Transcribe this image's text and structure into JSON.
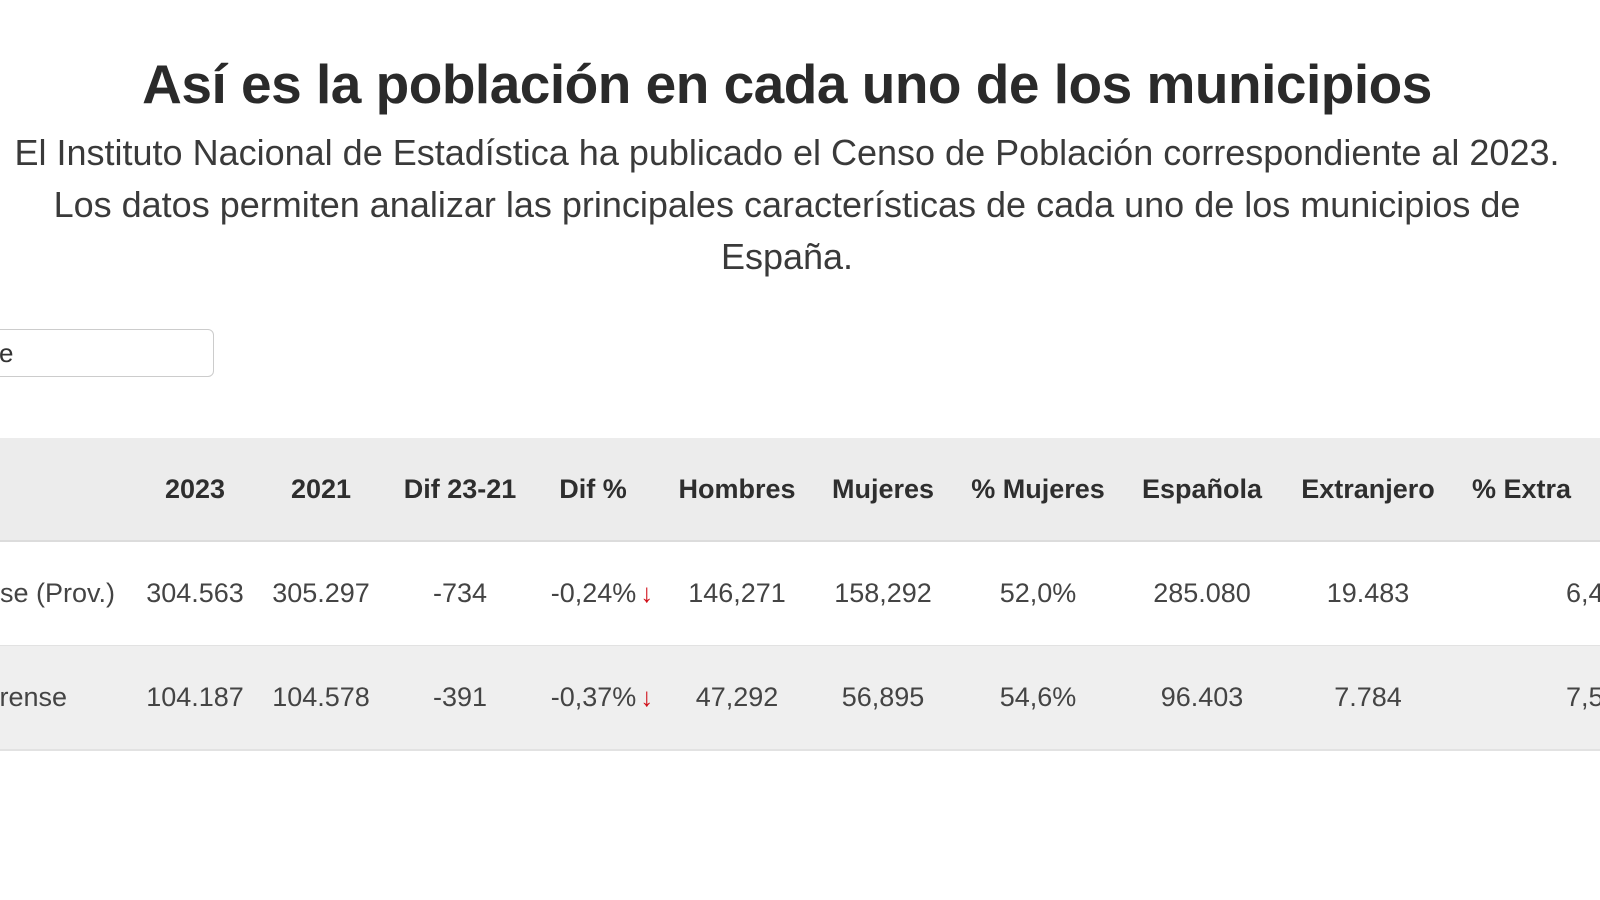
{
  "title": "Así es la población en cada uno de los municipios",
  "subtitle_lines": [
    "El Instituto Nacional de Estadística ha publicado el Censo de Población correspondiente al 2023.",
    "Los datos permiten analizar las principales características de cada uno de los municipios de",
    "España."
  ],
  "search": {
    "value": "e"
  },
  "table": {
    "headers": [
      "2023",
      "2021",
      "Dif 23-21",
      "Dif %",
      "Hombres",
      "Mujeres",
      "% Mujeres",
      "Española",
      "Extranjero",
      "% Extra"
    ],
    "rows": [
      {
        "name": "se (Prov.)",
        "cells": [
          "304.563",
          "305.297",
          "-734",
          "-0,24%",
          "146,271",
          "158,292",
          "52,0%",
          "285.080",
          "19.483",
          "6,4"
        ],
        "trend": "down"
      },
      {
        "name": "rense",
        "cells": [
          "104.187",
          "104.578",
          "-391",
          "-0,37%",
          "47,292",
          "56,895",
          "54,6%",
          "96.403",
          "7.784",
          "7,5"
        ],
        "trend": "down"
      }
    ]
  },
  "colors": {
    "header_bg": "#ececec",
    "row_alt_bg": "#efefef",
    "down_arrow": "#d0101a"
  }
}
